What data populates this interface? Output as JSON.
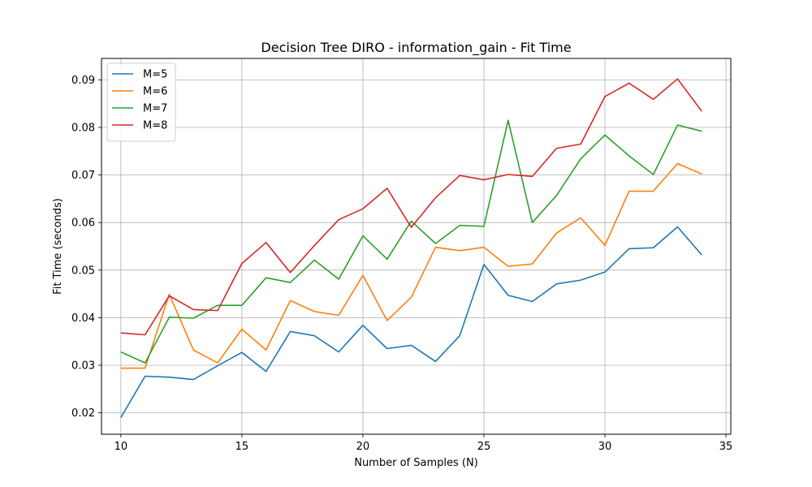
{
  "chart_data": {
    "type": "line",
    "title": "Decision Tree DIRO - information_gain - Fit Time",
    "xlabel": "Number of Samples (N)",
    "ylabel": "Fit Time (seconds)",
    "xlim": [
      9.2,
      35.2
    ],
    "ylim": [
      0.0155,
      0.0945
    ],
    "x_ticks": [
      10,
      15,
      20,
      25,
      30,
      35
    ],
    "y_ticks": [
      0.02,
      0.03,
      0.04,
      0.05,
      0.06,
      0.07,
      0.08,
      0.09
    ],
    "y_tick_labels": [
      "0.02",
      "0.03",
      "0.04",
      "0.05",
      "0.06",
      "0.07",
      "0.08",
      "0.09"
    ],
    "grid": true,
    "legend_position": "top-left",
    "x": [
      10,
      11,
      12,
      13,
      14,
      15,
      16,
      17,
      18,
      19,
      20,
      21,
      22,
      23,
      24,
      25,
      26,
      27,
      28,
      29,
      30,
      31,
      32,
      33,
      34
    ],
    "series": [
      {
        "name": "M=5",
        "color": "#1f77b4",
        "values": [
          0.019,
          0.0277,
          0.0275,
          0.027,
          0.0299,
          0.0327,
          0.0287,
          0.0371,
          0.0362,
          0.0328,
          0.0384,
          0.0335,
          0.0342,
          0.0308,
          0.0362,
          0.0512,
          0.0447,
          0.0434,
          0.0471,
          0.0479,
          0.0496,
          0.0545,
          0.0547,
          0.0591,
          0.0532
        ]
      },
      {
        "name": "M=6",
        "color": "#ff7f0e",
        "values": [
          0.0294,
          0.0294,
          0.0449,
          0.0332,
          0.0305,
          0.0376,
          0.0332,
          0.0436,
          0.0413,
          0.0405,
          0.0489,
          0.0394,
          0.0443,
          0.0548,
          0.0541,
          0.0548,
          0.0508,
          0.0513,
          0.0578,
          0.061,
          0.0552,
          0.0666,
          0.0666,
          0.0724,
          0.0702
        ]
      },
      {
        "name": "M=7",
        "color": "#2ca02c",
        "values": [
          0.0328,
          0.0305,
          0.0401,
          0.0399,
          0.0426,
          0.0426,
          0.0484,
          0.0474,
          0.0521,
          0.0481,
          0.0572,
          0.0523,
          0.0603,
          0.0556,
          0.0594,
          0.0592,
          0.0815,
          0.06,
          0.0657,
          0.0734,
          0.0784,
          0.074,
          0.0701,
          0.0805,
          0.0792
        ]
      },
      {
        "name": "M=8",
        "color": "#d62728",
        "values": [
          0.0368,
          0.0364,
          0.0446,
          0.0417,
          0.0415,
          0.0514,
          0.0558,
          0.0495,
          0.0552,
          0.0606,
          0.0629,
          0.0672,
          0.059,
          0.0652,
          0.0699,
          0.069,
          0.0701,
          0.0697,
          0.0756,
          0.0765,
          0.0865,
          0.0893,
          0.0859,
          0.0902,
          0.0834
        ]
      }
    ]
  }
}
